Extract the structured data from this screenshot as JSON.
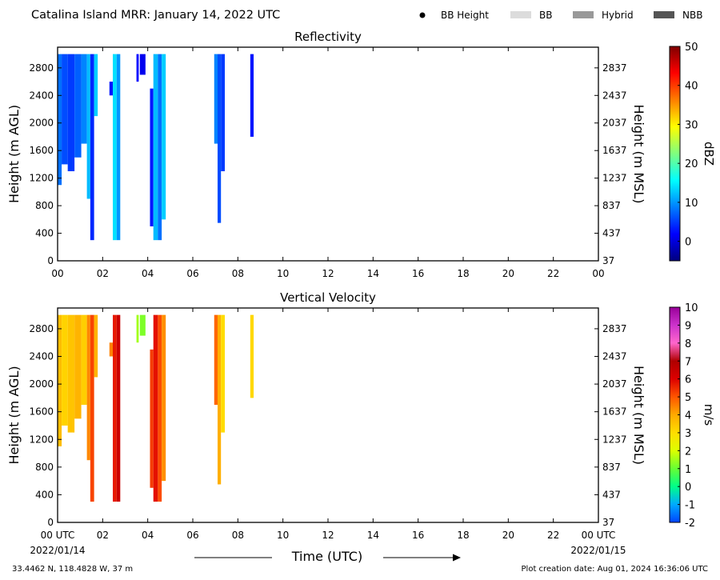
{
  "header": {
    "title": "Catalina Island MRR:  January 14, 2022 UTC",
    "legend": [
      {
        "label": "BB Height",
        "marker": "dot",
        "color": "#000000"
      },
      {
        "label": "BB",
        "marker": "swatch",
        "color": "#dcdcdc"
      },
      {
        "label": "Hybrid",
        "marker": "swatch",
        "color": "#999999"
      },
      {
        "label": "NBB",
        "marker": "swatch",
        "color": "#555555"
      }
    ]
  },
  "footer": {
    "location": "33.4462 N, 118.4828 W, 37 m",
    "creation": "Plot creation date: Aug 01, 2024 16:36:06 UTC",
    "xlabel": "Time (UTC)",
    "start_date": "2022/01/14",
    "end_date": "2022/01/15"
  },
  "chart_data": [
    {
      "type": "heatmap",
      "title": "Reflectivity",
      "ylabel": "Height (m AGL)",
      "ylabel_right": "Height (m MSL)",
      "xlim": [
        0,
        24
      ],
      "ylim": [
        0,
        3100
      ],
      "x_ticks": [
        "00",
        "02",
        "04",
        "06",
        "08",
        "10",
        "12",
        "14",
        "16",
        "18",
        "20",
        "22",
        "00"
      ],
      "y_ticks": [
        0,
        400,
        800,
        1200,
        1600,
        2000,
        2400,
        2800
      ],
      "y_ticks_right": [
        37,
        437,
        837,
        1237,
        1637,
        2037,
        2437,
        2837
      ],
      "colorbar": {
        "label": "dBZ",
        "range": [
          -5,
          50
        ],
        "ticks": [
          0,
          10,
          20,
          30,
          40,
          50
        ],
        "colors": [
          "#00007f",
          "#0000ff",
          "#007fff",
          "#00ffff",
          "#7fff7f",
          "#ffff00",
          "#ff7f00",
          "#ff0000",
          "#7f0000"
        ]
      },
      "grid": false,
      "segments": [
        {
          "t0": 0.0,
          "t1": 0.18,
          "y0": 1100,
          "y1": 3000,
          "value": 8
        },
        {
          "t0": 0.18,
          "t1": 0.45,
          "y0": 1400,
          "y1": 3000,
          "value": 6
        },
        {
          "t0": 0.45,
          "t1": 0.75,
          "y0": 1300,
          "y1": 3000,
          "value": 5
        },
        {
          "t0": 0.75,
          "t1": 1.05,
          "y0": 1500,
          "y1": 3000,
          "value": 7
        },
        {
          "t0": 1.05,
          "t1": 1.3,
          "y0": 1700,
          "y1": 3000,
          "value": 9
        },
        {
          "t0": 1.3,
          "t1": 1.45,
          "y0": 900,
          "y1": 3000,
          "value": 12
        },
        {
          "t0": 1.45,
          "t1": 1.62,
          "y0": 300,
          "y1": 3000,
          "value": 4
        },
        {
          "t0": 1.62,
          "t1": 1.78,
          "y0": 2100,
          "y1": 3000,
          "value": 13
        },
        {
          "t0": 2.3,
          "t1": 2.45,
          "y0": 2400,
          "y1": 2600,
          "value": 3
        },
        {
          "t0": 2.45,
          "t1": 2.62,
          "y0": 300,
          "y1": 3000,
          "value": 14
        },
        {
          "t0": 2.62,
          "t1": 2.78,
          "y0": 300,
          "y1": 3000,
          "value": 10
        },
        {
          "t0": 3.5,
          "t1": 3.6,
          "y0": 2600,
          "y1": 3000,
          "value": 2
        },
        {
          "t0": 3.65,
          "t1": 3.9,
          "y0": 2700,
          "y1": 3000,
          "value": 1
        },
        {
          "t0": 4.1,
          "t1": 4.25,
          "y0": 500,
          "y1": 2500,
          "value": 3
        },
        {
          "t0": 4.25,
          "t1": 4.45,
          "y0": 300,
          "y1": 3000,
          "value": 12
        },
        {
          "t0": 4.45,
          "t1": 4.62,
          "y0": 300,
          "y1": 3000,
          "value": 8
        },
        {
          "t0": 4.62,
          "t1": 4.8,
          "y0": 600,
          "y1": 3000,
          "value": 13
        },
        {
          "t0": 6.95,
          "t1": 7.1,
          "y0": 1700,
          "y1": 3000,
          "value": 9
        },
        {
          "t0": 7.1,
          "t1": 7.25,
          "y0": 550,
          "y1": 3000,
          "value": 6
        },
        {
          "t0": 7.25,
          "t1": 7.42,
          "y0": 1300,
          "y1": 3000,
          "value": 5
        },
        {
          "t0": 8.55,
          "t1": 8.7,
          "y0": 1800,
          "y1": 3000,
          "value": 3
        }
      ]
    },
    {
      "type": "heatmap",
      "title": "Vertical Velocity",
      "ylabel": "Height (m AGL)",
      "ylabel_right": "Height (m MSL)",
      "xlim": [
        0,
        24
      ],
      "ylim": [
        0,
        3100
      ],
      "x_ticks": [
        "00 UTC",
        "02",
        "04",
        "06",
        "08",
        "10",
        "12",
        "14",
        "16",
        "18",
        "20",
        "22",
        "00 UTC"
      ],
      "y_ticks": [
        0,
        400,
        800,
        1200,
        1600,
        2000,
        2400,
        2800
      ],
      "y_ticks_right": [
        37,
        437,
        837,
        1237,
        1637,
        2037,
        2437,
        2837
      ],
      "colorbar": {
        "label": "m/s",
        "range": [
          -2,
          10
        ],
        "ticks": [
          -2,
          -1,
          0,
          1,
          2,
          3,
          4,
          5,
          6,
          7,
          8,
          9,
          10
        ],
        "colors": [
          "#0044ff",
          "#00aaff",
          "#00ff88",
          "#66ff33",
          "#ddff00",
          "#ffdd00",
          "#ffaa00",
          "#ff5500",
          "#dd0000",
          "#b00000",
          "#ff66cc",
          "#cc33cc",
          "#990099"
        ]
      },
      "grid": false,
      "segments": [
        {
          "t0": 0.0,
          "t1": 0.18,
          "y0": 1100,
          "y1": 3000,
          "value": 3.6
        },
        {
          "t0": 0.18,
          "t1": 0.45,
          "y0": 1400,
          "y1": 3000,
          "value": 3.2
        },
        {
          "t0": 0.45,
          "t1": 0.75,
          "y0": 1300,
          "y1": 3000,
          "value": 3.5
        },
        {
          "t0": 0.75,
          "t1": 1.05,
          "y0": 1500,
          "y1": 3000,
          "value": 3.8
        },
        {
          "t0": 1.05,
          "t1": 1.3,
          "y0": 1700,
          "y1": 3000,
          "value": 3.3
        },
        {
          "t0": 1.3,
          "t1": 1.45,
          "y0": 900,
          "y1": 3000,
          "value": 4.4
        },
        {
          "t0": 1.45,
          "t1": 1.62,
          "y0": 300,
          "y1": 3000,
          "value": 5.2
        },
        {
          "t0": 1.62,
          "t1": 1.78,
          "y0": 2100,
          "y1": 3000,
          "value": 3.8
        },
        {
          "t0": 2.3,
          "t1": 2.45,
          "y0": 2400,
          "y1": 2600,
          "value": 4.5
        },
        {
          "t0": 2.45,
          "t1": 2.62,
          "y0": 300,
          "y1": 3000,
          "value": 5.7
        },
        {
          "t0": 2.62,
          "t1": 2.78,
          "y0": 300,
          "y1": 3000,
          "value": 6.4
        },
        {
          "t0": 3.5,
          "t1": 3.6,
          "y0": 2600,
          "y1": 3000,
          "value": 1.5
        },
        {
          "t0": 3.65,
          "t1": 3.9,
          "y0": 2700,
          "y1": 3000,
          "value": 1.2
        },
        {
          "t0": 4.1,
          "t1": 4.25,
          "y0": 500,
          "y1": 2500,
          "value": 5.3
        },
        {
          "t0": 4.25,
          "t1": 4.45,
          "y0": 300,
          "y1": 3000,
          "value": 5.8
        },
        {
          "t0": 4.45,
          "t1": 4.62,
          "y0": 300,
          "y1": 3000,
          "value": 5.1
        },
        {
          "t0": 4.62,
          "t1": 4.8,
          "y0": 600,
          "y1": 3000,
          "value": 4.3
        },
        {
          "t0": 6.95,
          "t1": 7.1,
          "y0": 1700,
          "y1": 3000,
          "value": 4.8
        },
        {
          "t0": 7.1,
          "t1": 7.25,
          "y0": 550,
          "y1": 3000,
          "value": 3.9
        },
        {
          "t0": 7.25,
          "t1": 7.42,
          "y0": 1300,
          "y1": 3000,
          "value": 3.0
        },
        {
          "t0": 8.55,
          "t1": 8.7,
          "y0": 1800,
          "y1": 3000,
          "value": 3.1
        }
      ]
    }
  ]
}
